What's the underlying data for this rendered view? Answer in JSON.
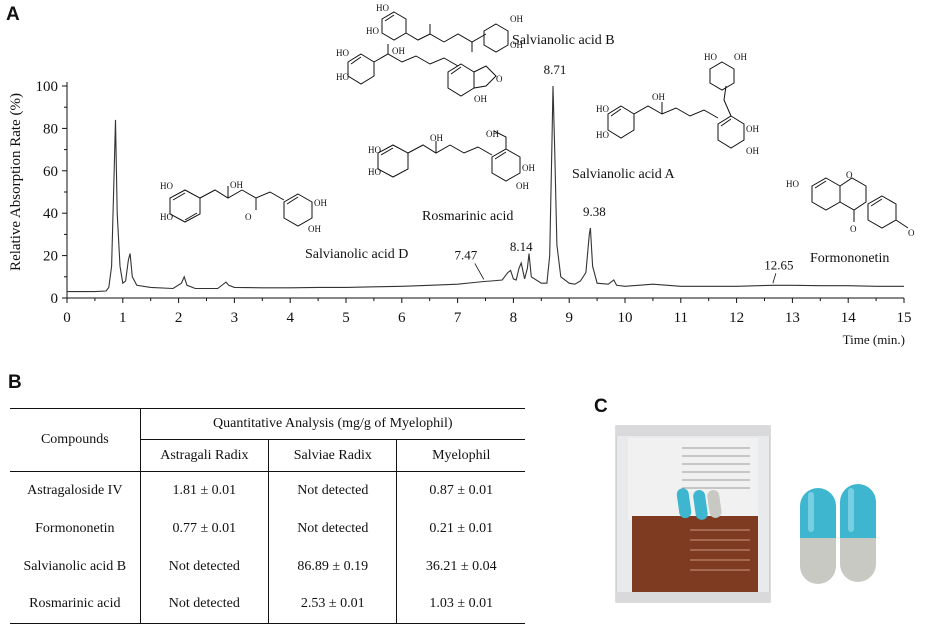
{
  "panels": {
    "a": "A",
    "b": "B",
    "c": "C"
  },
  "chart_data": {
    "type": "line",
    "title": "",
    "xlabel": "Time (min.)",
    "ylabel": "Relative Absorption Rate (%)",
    "xlim": [
      0,
      15
    ],
    "ylim": [
      0,
      100
    ],
    "xticks": [
      "0",
      "1",
      "2",
      "3",
      "4",
      "5",
      "6",
      "7",
      "8",
      "9",
      "10",
      "11",
      "12",
      "13",
      "14",
      "15"
    ],
    "yticks": [
      "0",
      "20",
      "40",
      "60",
      "80",
      "100"
    ],
    "grid": false,
    "series": [
      {
        "points": [
          [
            0,
            3
          ],
          [
            0.5,
            3
          ],
          [
            0.7,
            3.3
          ],
          [
            0.75,
            5
          ],
          [
            0.8,
            15
          ],
          [
            0.84,
            55
          ],
          [
            0.87,
            84
          ],
          [
            0.9,
            40
          ],
          [
            0.95,
            15
          ],
          [
            1.0,
            7
          ],
          [
            1.05,
            8
          ],
          [
            1.1,
            18
          ],
          [
            1.13,
            21
          ],
          [
            1.17,
            10
          ],
          [
            1.25,
            6
          ],
          [
            1.5,
            5
          ],
          [
            1.9,
            4.5
          ],
          [
            2.05,
            7
          ],
          [
            2.1,
            10
          ],
          [
            2.15,
            6
          ],
          [
            2.3,
            4.5
          ],
          [
            2.7,
            4.5
          ],
          [
            2.85,
            7.5
          ],
          [
            2.9,
            6
          ],
          [
            3.0,
            5
          ],
          [
            3.5,
            4.8
          ],
          [
            4.0,
            4.8
          ],
          [
            4.5,
            5
          ],
          [
            5.0,
            5
          ],
          [
            5.5,
            5.3
          ],
          [
            6.0,
            5.5
          ],
          [
            6.5,
            6
          ],
          [
            7.0,
            6.5
          ],
          [
            7.3,
            7.3
          ],
          [
            7.47,
            7.8
          ],
          [
            7.6,
            8
          ],
          [
            7.8,
            8.5
          ],
          [
            7.9,
            12
          ],
          [
            7.95,
            13
          ],
          [
            8.0,
            9
          ],
          [
            8.05,
            8.5
          ],
          [
            8.1,
            14
          ],
          [
            8.14,
            16.5
          ],
          [
            8.2,
            9
          ],
          [
            8.25,
            14
          ],
          [
            8.28,
            21
          ],
          [
            8.32,
            10
          ],
          [
            8.5,
            7
          ],
          [
            8.6,
            7
          ],
          [
            8.65,
            20
          ],
          [
            8.69,
            72
          ],
          [
            8.71,
            100
          ],
          [
            8.74,
            70
          ],
          [
            8.78,
            25
          ],
          [
            8.85,
            10
          ],
          [
            9.0,
            7
          ],
          [
            9.1,
            6.5
          ],
          [
            9.2,
            8
          ],
          [
            9.3,
            12
          ],
          [
            9.36,
            30
          ],
          [
            9.38,
            33
          ],
          [
            9.42,
            15
          ],
          [
            9.5,
            7
          ],
          [
            9.7,
            6.5
          ],
          [
            9.8,
            8.5
          ],
          [
            9.85,
            6
          ],
          [
            10.0,
            5.5
          ],
          [
            10.5,
            6.5
          ],
          [
            11.0,
            5.5
          ],
          [
            11.5,
            5.5
          ],
          [
            12.0,
            5.5
          ],
          [
            12.65,
            6
          ],
          [
            13.0,
            6
          ],
          [
            13.5,
            5.8
          ],
          [
            14.0,
            5.8
          ],
          [
            14.5,
            5.5
          ],
          [
            15.0,
            5.5
          ]
        ]
      }
    ],
    "peak_labels": [
      {
        "x": 7.47,
        "text": "7.47"
      },
      {
        "x": 8.14,
        "text": "8.14"
      },
      {
        "x": 8.71,
        "text": "8.71"
      },
      {
        "x": 9.38,
        "text": "9.38"
      },
      {
        "x": 12.65,
        "text": "12.65"
      }
    ],
    "compounds": {
      "salvianolic_acid_d": "Salvianolic acid D",
      "rosmarinic_acid": "Rosmarinic acid",
      "salvianolic_acid_b": "Salvianolic acid B",
      "salvianolic_acid_a": "Salvianolic acid A",
      "formononetin": "Formononetin"
    },
    "structure_atoms": {
      "ho": "HO",
      "oh": "OH",
      "o": "O"
    }
  },
  "table": {
    "compounds_header": "Compounds",
    "group_header": "Quantitative Analysis (mg/g of Myelophil)",
    "columns": [
      "Astragali Radix",
      "Salviae Radix",
      "Myelophil"
    ],
    "rows": [
      {
        "compound": "Astragaloside IV",
        "values": [
          "1.81 ± 0.01",
          "Not detected",
          "0.87 ± 0.01"
        ]
      },
      {
        "compound": "Formononetin",
        "values": [
          "0.77 ± 0.01",
          "Not detected",
          "0.21 ± 0.01"
        ]
      },
      {
        "compound": "Salvianolic acid B",
        "values": [
          "Not detected",
          "86.89 ± 0.19",
          "36.21 ± 0.04"
        ]
      },
      {
        "compound": "Rosmarinic acid",
        "values": [
          "Not detected",
          "2.53 ± 0.01",
          "1.03 ± 0.01"
        ]
      }
    ]
  },
  "colors": {
    "capsule_blue": "#3fb6cf",
    "capsule_grey": "#c9c9c4",
    "pack_brown": "#7e3b22"
  }
}
